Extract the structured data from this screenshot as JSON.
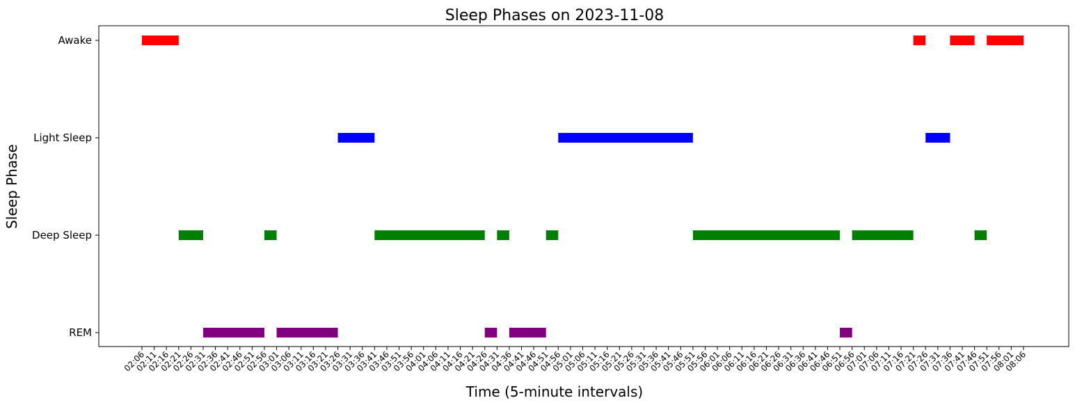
{
  "chart_data": {
    "type": "bar",
    "orientation": "horizontal-timeline",
    "title": "Sleep Phases on 2023-11-08",
    "xlabel": "Time (5-minute intervals)",
    "ylabel": "Sleep Phase",
    "categories": [
      "REM",
      "Deep Sleep",
      "Light Sleep",
      "Awake"
    ],
    "phase_colors": {
      "Awake": "#ff0000",
      "Light Sleep": "#0000ff",
      "Deep Sleep": "#008000",
      "REM": "#800080"
    },
    "x_ticks": [
      "02:06",
      "02:11",
      "02:16",
      "02:21",
      "02:26",
      "02:31",
      "02:36",
      "02:41",
      "02:46",
      "02:51",
      "02:56",
      "03:01",
      "03:06",
      "03:11",
      "03:16",
      "03:21",
      "03:26",
      "03:31",
      "03:36",
      "03:41",
      "03:46",
      "03:51",
      "03:56",
      "04:01",
      "04:06",
      "04:11",
      "04:16",
      "04:21",
      "04:26",
      "04:31",
      "04:36",
      "04:41",
      "04:46",
      "04:51",
      "04:56",
      "05:01",
      "05:06",
      "05:11",
      "05:16",
      "05:21",
      "05:26",
      "05:31",
      "05:36",
      "05:41",
      "05:46",
      "05:51",
      "05:56",
      "06:01",
      "06:06",
      "06:11",
      "06:16",
      "06:21",
      "06:26",
      "06:31",
      "06:36",
      "06:41",
      "06:46",
      "06:51",
      "06:56",
      "07:01",
      "07:06",
      "07:11",
      "07:16",
      "07:21",
      "07:26",
      "07:31",
      "07:36",
      "07:41",
      "07:46",
      "07:51",
      "07:56",
      "08:01",
      "08:06"
    ],
    "segments": [
      {
        "phase": "Awake",
        "start": "02:06",
        "end": "02:21"
      },
      {
        "phase": "Deep Sleep",
        "start": "02:21",
        "end": "02:31"
      },
      {
        "phase": "REM",
        "start": "02:31",
        "end": "02:56"
      },
      {
        "phase": "Deep Sleep",
        "start": "02:56",
        "end": "03:01"
      },
      {
        "phase": "REM",
        "start": "03:01",
        "end": "03:26"
      },
      {
        "phase": "Light Sleep",
        "start": "03:26",
        "end": "03:41"
      },
      {
        "phase": "Deep Sleep",
        "start": "03:41",
        "end": "04:26"
      },
      {
        "phase": "REM",
        "start": "04:26",
        "end": "04:31"
      },
      {
        "phase": "Deep Sleep",
        "start": "04:31",
        "end": "04:36"
      },
      {
        "phase": "REM",
        "start": "04:36",
        "end": "04:51"
      },
      {
        "phase": "Deep Sleep",
        "start": "04:51",
        "end": "04:56"
      },
      {
        "phase": "Light Sleep",
        "start": "04:56",
        "end": "05:51"
      },
      {
        "phase": "Deep Sleep",
        "start": "05:51",
        "end": "06:51"
      },
      {
        "phase": "REM",
        "start": "06:51",
        "end": "06:56"
      },
      {
        "phase": "Deep Sleep",
        "start": "06:56",
        "end": "07:21"
      },
      {
        "phase": "Awake",
        "start": "07:21",
        "end": "07:26"
      },
      {
        "phase": "Light Sleep",
        "start": "07:26",
        "end": "07:36"
      },
      {
        "phase": "Awake",
        "start": "07:36",
        "end": "07:46"
      },
      {
        "phase": "Deep Sleep",
        "start": "07:46",
        "end": "07:51"
      },
      {
        "phase": "Awake",
        "start": "07:51",
        "end": "08:06"
      }
    ],
    "grid": false,
    "legend": "none"
  }
}
